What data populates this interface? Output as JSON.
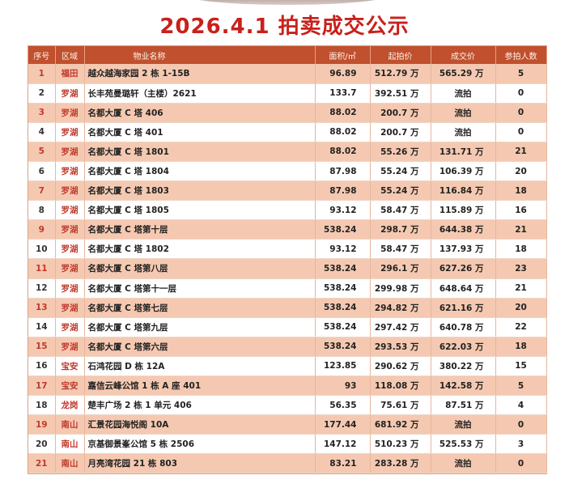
{
  "title": "2026.4.1 拍卖成交公示",
  "headers": {
    "index": "序号",
    "district": "区域",
    "property": "物业名称",
    "area": "面积/㎡",
    "start_price": "起拍价",
    "deal_price": "成交价",
    "bidders": "参拍人数"
  },
  "rows": [
    {
      "index": "1",
      "district": "福田",
      "property": "越众越海家园 2 栋 1-15B",
      "area": "96.89",
      "start_price": "512.79 万",
      "deal_price": "565.29 万",
      "bidders": "5"
    },
    {
      "index": "2",
      "district": "罗湖",
      "property": "长丰苑曼璐轩（主楼）2621",
      "area": "133.7",
      "start_price": "392.51 万",
      "deal_price": "流拍",
      "bidders": "0"
    },
    {
      "index": "3",
      "district": "罗湖",
      "property": "名都大厦 C 塔 406",
      "area": "88.02",
      "start_price": "200.7 万",
      "deal_price": "流拍",
      "bidders": "0"
    },
    {
      "index": "4",
      "district": "罗湖",
      "property": "名都大厦 C 塔 401",
      "area": "88.02",
      "start_price": "200.7 万",
      "deal_price": "流拍",
      "bidders": "0"
    },
    {
      "index": "5",
      "district": "罗湖",
      "property": "名都大厦 C 塔 1801",
      "area": "88.02",
      "start_price": "55.26 万",
      "deal_price": "131.71 万",
      "bidders": "21"
    },
    {
      "index": "6",
      "district": "罗湖",
      "property": "名都大厦 C 塔 1804",
      "area": "87.98",
      "start_price": "55.24 万",
      "deal_price": "106.39 万",
      "bidders": "20"
    },
    {
      "index": "7",
      "district": "罗湖",
      "property": "名都大厦 C 塔 1803",
      "area": "87.98",
      "start_price": "55.24 万",
      "deal_price": "116.84 万",
      "bidders": "18"
    },
    {
      "index": "8",
      "district": "罗湖",
      "property": "名都大厦 C 塔 1805",
      "area": "93.12",
      "start_price": "58.47 万",
      "deal_price": "115.89 万",
      "bidders": "16"
    },
    {
      "index": "9",
      "district": "罗湖",
      "property": "名都大厦 C 塔第十层",
      "area": "538.24",
      "start_price": "298.7 万",
      "deal_price": "644.38 万",
      "bidders": "21"
    },
    {
      "index": "10",
      "district": "罗湖",
      "property": "名都大厦 C 塔 1802",
      "area": "93.12",
      "start_price": "58.47 万",
      "deal_price": "137.93 万",
      "bidders": "18"
    },
    {
      "index": "11",
      "district": "罗湖",
      "property": "名都大厦 C 塔第八层",
      "area": "538.24",
      "start_price": "296.1 万",
      "deal_price": "627.26 万",
      "bidders": "23"
    },
    {
      "index": "12",
      "district": "罗湖",
      "property": "名都大厦 C 塔第十一层",
      "area": "538.24",
      "start_price": "299.98 万",
      "deal_price": "648.64 万",
      "bidders": "21"
    },
    {
      "index": "13",
      "district": "罗湖",
      "property": "名都大厦 C 塔第七层",
      "area": "538.24",
      "start_price": "294.82 万",
      "deal_price": "621.16 万",
      "bidders": "20"
    },
    {
      "index": "14",
      "district": "罗湖",
      "property": "名都大厦 C 塔第九层",
      "area": "538.24",
      "start_price": "297.42 万",
      "deal_price": "640.78 万",
      "bidders": "22"
    },
    {
      "index": "15",
      "district": "罗湖",
      "property": "名都大厦 C 塔第六层",
      "area": "538.24",
      "start_price": "293.53 万",
      "deal_price": "622.03 万",
      "bidders": "18"
    },
    {
      "index": "16",
      "district": "宝安",
      "property": "石鸿花园 D 栋 12A",
      "area": "123.85",
      "start_price": "290.62 万",
      "deal_price": "380.22 万",
      "bidders": "15"
    },
    {
      "index": "17",
      "district": "宝安",
      "property": "嘉信云峰公馆 1 栋 A 座 401",
      "area": "93",
      "start_price": "118.08 万",
      "deal_price": "142.58 万",
      "bidders": "5"
    },
    {
      "index": "18",
      "district": "龙岗",
      "property": "楚丰广场 2 栋 1 单元 406",
      "area": "56.35",
      "start_price": "75.61 万",
      "deal_price": "87.51 万",
      "bidders": "4"
    },
    {
      "index": "19",
      "district": "南山",
      "property": "汇景花园海悦阁 10A",
      "area": "177.44",
      "start_price": "681.92 万",
      "deal_price": "流拍",
      "bidders": "0"
    },
    {
      "index": "20",
      "district": "南山",
      "property": "京基御景峯公馆 5 栋 2506",
      "area": "147.12",
      "start_price": "510.23 万",
      "deal_price": "525.53 万",
      "bidders": "3"
    },
    {
      "index": "21",
      "district": "南山",
      "property": "月亮湾花园 21 栋 803",
      "area": "83.21",
      "start_price": "283.28 万",
      "deal_price": "流拍",
      "bidders": "0"
    }
  ]
}
